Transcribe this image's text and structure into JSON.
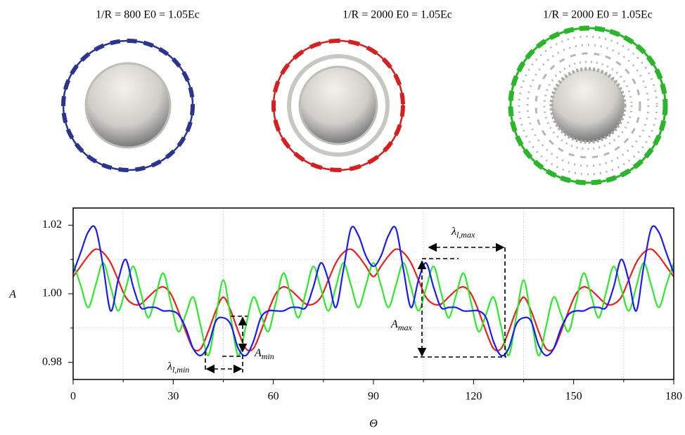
{
  "panels": [
    {
      "title": "1/R = 800 E0 = 1.05Ec"
    },
    {
      "title": "1/R = 2000 E0 = 1.05Ec"
    },
    {
      "title": "1/R = 2000 E0 = 1.05Ec"
    }
  ],
  "chart_data": {
    "type": "line",
    "x_label": "Θ",
    "y_label": "A",
    "xlim": [
      0,
      180
    ],
    "ylim": [
      0.975,
      1.025
    ],
    "xticks": [
      0,
      30,
      60,
      90,
      120,
      150,
      180
    ],
    "xminorticks": [
      15,
      45,
      75,
      105,
      135,
      165
    ],
    "yticks": [
      0.98,
      {
        "value": 1,
        "label": "1.00"
      },
      1.02
    ],
    "yminorticks": [
      0.99,
      1.01
    ],
    "grid": true,
    "annotations": [
      {
        "symbol": "λ",
        "subscript": "l,max"
      },
      {
        "symbol": "A",
        "subscript": "max"
      },
      {
        "symbol": "A",
        "subscript": "min"
      },
      {
        "symbol": "λ",
        "subscript": "l,min"
      }
    ],
    "x": [
      0,
      2.25,
      4.5,
      6.75,
      9,
      11.25,
      13.5,
      15.75,
      18,
      20.25,
      22.5,
      24.75,
      27,
      29.25,
      31.5,
      33.75,
      36,
      38.25,
      40.5,
      42.75,
      45,
      47.25,
      49.5,
      51.75,
      54,
      56.25,
      58.5,
      60.75,
      63,
      65.25,
      67.5,
      69.75,
      72,
      74.25,
      76.5,
      78.75,
      81,
      83.25,
      85.5,
      87.75,
      90,
      92.25,
      94.5,
      96.75,
      99,
      101.25,
      103.5,
      105.75,
      108,
      110.25,
      112.5,
      114.75,
      117,
      119.25,
      121.5,
      123.75,
      126,
      128.25,
      130.5,
      132.75,
      135,
      137.25,
      139.5,
      141.75,
      144,
      146.25,
      148.5,
      150.75,
      153,
      155.25,
      157.5,
      159.75,
      162,
      164.25,
      166.5,
      168.75,
      171,
      173.25,
      175.5,
      177.75,
      180
    ],
    "series": [
      {
        "color": "#e8231d",
        "values": [
          1.005,
          1.008,
          1.011,
          1.013,
          1.012,
          1.009,
          1.004,
          0.999,
          0.997,
          0.997,
          0.999,
          1.001,
          1.002,
          1.0,
          0.995,
          0.989,
          0.984,
          0.984,
          0.989,
          0.995,
          0.999,
          0.995,
          0.989,
          0.984,
          0.984,
          0.989,
          0.995,
          1.0,
          1.002,
          1.001,
          0.999,
          0.997,
          0.997,
          0.999,
          1.004,
          1.009,
          1.012,
          1.013,
          1.011,
          1.008,
          1.005,
          1.008,
          1.011,
          1.013,
          1.012,
          1.009,
          1.004,
          0.999,
          0.997,
          0.997,
          0.999,
          1.001,
          1.002,
          1.0,
          0.995,
          0.989,
          0.984,
          0.984,
          0.989,
          0.995,
          0.999,
          0.995,
          0.989,
          0.984,
          0.984,
          0.989,
          0.995,
          1.0,
          1.002,
          1.001,
          0.999,
          0.997,
          0.997,
          0.999,
          1.004,
          1.009,
          1.012,
          1.013,
          1.011,
          1.008,
          1.005
        ]
      },
      {
        "color": "#2ee82e",
        "values": [
          1.009,
          1.0025,
          0.996,
          1.0025,
          1.009,
          1.002,
          0.995,
          1.0015,
          1.008,
          1.0005,
          0.993,
          0.9995,
          1.006,
          0.9975,
          0.989,
          0.994,
          0.999,
          0.9905,
          0.982,
          0.993,
          1.004,
          0.993,
          0.982,
          0.9905,
          0.999,
          0.994,
          0.989,
          0.9975,
          1.006,
          0.9995,
          0.993,
          1.0005,
          1.008,
          1.0015,
          0.995,
          1.002,
          1.009,
          1.0025,
          0.996,
          1.0025,
          1.009,
          1.0025,
          0.996,
          1.0025,
          1.009,
          1.002,
          0.995,
          1.0015,
          1.008,
          1.0005,
          0.993,
          0.9995,
          1.006,
          0.9975,
          0.989,
          0.994,
          0.999,
          0.9905,
          0.982,
          0.993,
          1.004,
          0.993,
          0.982,
          0.9905,
          0.999,
          0.994,
          0.989,
          0.9975,
          1.006,
          0.9995,
          0.993,
          1.0005,
          1.008,
          1.0015,
          0.995,
          1.002,
          1.009,
          1.0025,
          0.996,
          1.0025,
          1.009
        ]
      },
      {
        "color": "#1a1aff",
        "values": [
          1.006,
          1.012,
          1.018,
          1.019,
          1.008,
          0.995,
          1.004,
          1.01,
          1.002,
          0.996,
          0.996,
          0.996,
          0.995,
          0.995,
          0.994,
          0.99,
          0.984,
          0.982,
          0.985,
          0.992,
          0.993,
          0.991,
          0.984,
          0.982,
          0.986,
          0.993,
          0.995,
          0.995,
          0.995,
          0.996,
          0.996,
          0.996,
          1.002,
          1.009,
          1.004,
          0.996,
          1.007,
          1.019,
          1.017,
          1.011,
          1.008,
          1.011,
          1.017,
          1.019,
          1.007,
          0.996,
          1.004,
          1.009,
          1.002,
          0.996,
          0.996,
          0.996,
          0.995,
          0.995,
          0.995,
          0.993,
          0.986,
          0.982,
          0.984,
          0.991,
          0.993,
          0.992,
          0.985,
          0.982,
          0.984,
          0.99,
          0.994,
          0.995,
          0.995,
          0.996,
          0.996,
          0.996,
          1.002,
          1.01,
          1.004,
          0.995,
          1.008,
          1.019,
          1.018,
          1.012,
          1.006
        ]
      }
    ]
  }
}
